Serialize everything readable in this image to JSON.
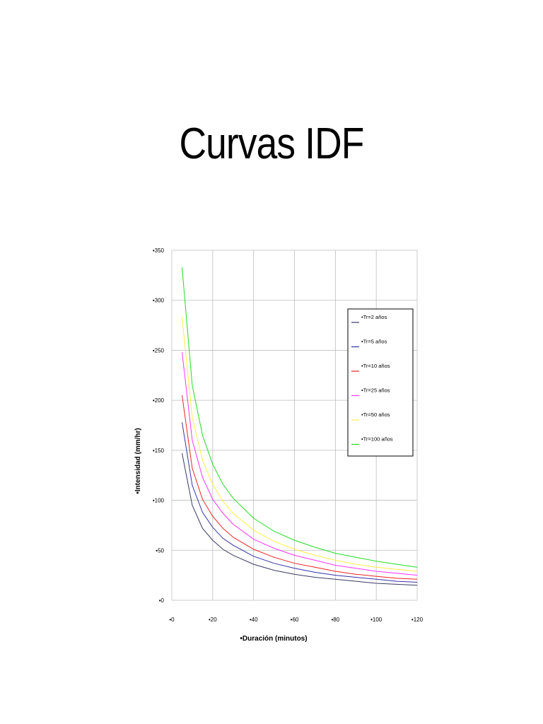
{
  "slide": {
    "title": "Curvas IDF"
  },
  "chart_data": {
    "type": "line",
    "title": "",
    "xlabel": "•Duración (minutos)",
    "ylabel": "•Intensidad (mm/hr)",
    "xlim": [
      0,
      120
    ],
    "ylim": [
      0,
      350
    ],
    "xticks": [
      0,
      20,
      40,
      60,
      80,
      100,
      120
    ],
    "yticks": [
      0,
      50,
      100,
      150,
      200,
      250,
      300,
      350
    ],
    "xtick_labels": [
      "•0",
      "•20",
      "•40",
      "•60",
      "•80",
      "•100",
      "•120"
    ],
    "ytick_labels": [
      "•0",
      "•50",
      "•100",
      "•150",
      "•200",
      "•250",
      "•300",
      "•350"
    ],
    "grid": true,
    "legend_position": "right-top",
    "x": [
      5,
      10,
      15,
      20,
      25,
      30,
      40,
      50,
      60,
      70,
      80,
      90,
      100,
      110,
      120
    ],
    "series": [
      {
        "name": "•Tr=2 años",
        "color": "#3a3a66",
        "values": [
          147,
          95,
          72,
          60,
          51,
          45,
          36,
          30,
          26,
          23,
          21,
          19,
          17,
          16,
          15
        ]
      },
      {
        "name": "•Tr=5 años",
        "color": "#3333aa",
        "values": [
          178,
          115,
          88,
          73,
          62,
          55,
          44,
          37,
          32,
          28,
          25,
          23,
          21,
          19,
          18
        ]
      },
      {
        "name": "•Tr=10 años",
        "color": "#ee2222",
        "values": [
          205,
          132,
          101,
          84,
          72,
          63,
          51,
          43,
          37,
          33,
          29,
          26,
          24,
          22,
          21
        ]
      },
      {
        "name": "•Tr=25 años",
        "color": "#ff33ff",
        "values": [
          248,
          160,
          123,
          101,
          87,
          76,
          61,
          52,
          45,
          40,
          35,
          32,
          29,
          27,
          25
        ]
      },
      {
        "name": "•Tr=50 años",
        "color": "#ffee44",
        "values": [
          283,
          183,
          140,
          116,
          99,
          87,
          70,
          59,
          51,
          45,
          40,
          36,
          33,
          31,
          29
        ]
      },
      {
        "name": "•Tr=100 años",
        "color": "#22dd22",
        "values": [
          333,
          215,
          165,
          136,
          116,
          102,
          82,
          69,
          60,
          53,
          47,
          43,
          39,
          36,
          33
        ]
      }
    ]
  }
}
